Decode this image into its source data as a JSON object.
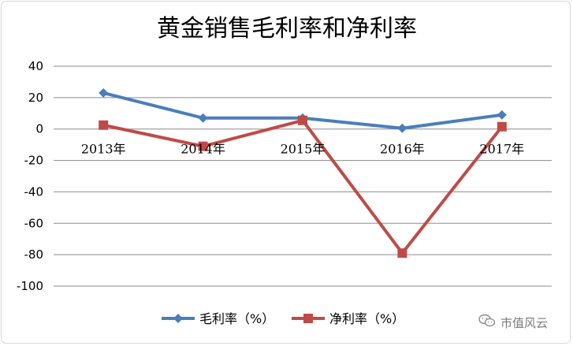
{
  "chart_data": {
    "type": "line",
    "title": "黄金销售毛利率和净利率",
    "categories": [
      "2013年",
      "2014年",
      "2015年",
      "2016年",
      "2017年"
    ],
    "ylim": [
      -100,
      40
    ],
    "yticks": [
      "40",
      "20",
      "0",
      "-20",
      "-40",
      "-60",
      "-80",
      "-100"
    ],
    "grid": true,
    "legend_position": "bottom",
    "series": [
      {
        "name": "毛利率（%）",
        "color": "#4a7ebb",
        "marker": "diamond",
        "values": [
          23,
          7,
          7,
          0.5,
          9
        ]
      },
      {
        "name": "净利率（%）",
        "color": "#be4b48",
        "marker": "square",
        "values": [
          2.5,
          -11,
          5.5,
          -79,
          1.5
        ]
      }
    ]
  },
  "watermark": {
    "icon": "wechat-icon",
    "text": "市值风云"
  }
}
